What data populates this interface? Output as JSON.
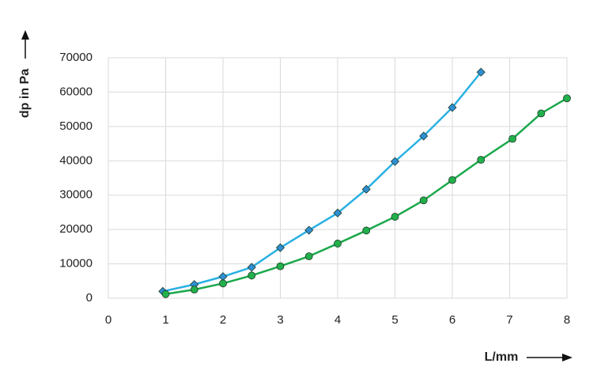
{
  "chart_data": {
    "type": "line",
    "x_label": "L/mm",
    "y_label": "dp in Pa",
    "xlim": [
      0,
      8
    ],
    "xticks": [
      0,
      1,
      2,
      3,
      4,
      5,
      6,
      7,
      8
    ],
    "ylim": [
      0,
      70000
    ],
    "yticks": [
      0,
      10000,
      20000,
      30000,
      40000,
      50000,
      60000,
      70000
    ],
    "grid": true,
    "series": [
      {
        "color": "#29b0e3",
        "marker": "diamond",
        "marker_color": "#2f8fd3",
        "x": [
          0.95,
          1.5,
          2.0,
          2.5,
          3.0,
          3.5,
          4.0,
          4.5,
          5.0,
          5.5,
          6.0,
          6.5
        ],
        "values": [
          2000,
          4000,
          6300,
          9000,
          14700,
          19800,
          24800,
          31700,
          39800,
          47200,
          55500,
          65800
        ]
      },
      {
        "color": "#1ba84b",
        "marker": "circle",
        "marker_color": "#22b04b",
        "x": [
          1.0,
          1.5,
          2.0,
          2.5,
          3.0,
          3.5,
          4.0,
          4.5,
          5.0,
          5.5,
          6.0,
          6.5,
          7.05,
          7.55,
          8.0
        ],
        "values": [
          1200,
          2500,
          4300,
          6600,
          9300,
          12200,
          15900,
          19700,
          23700,
          28500,
          34400,
          40300,
          46400,
          53800,
          58200
        ]
      }
    ]
  }
}
